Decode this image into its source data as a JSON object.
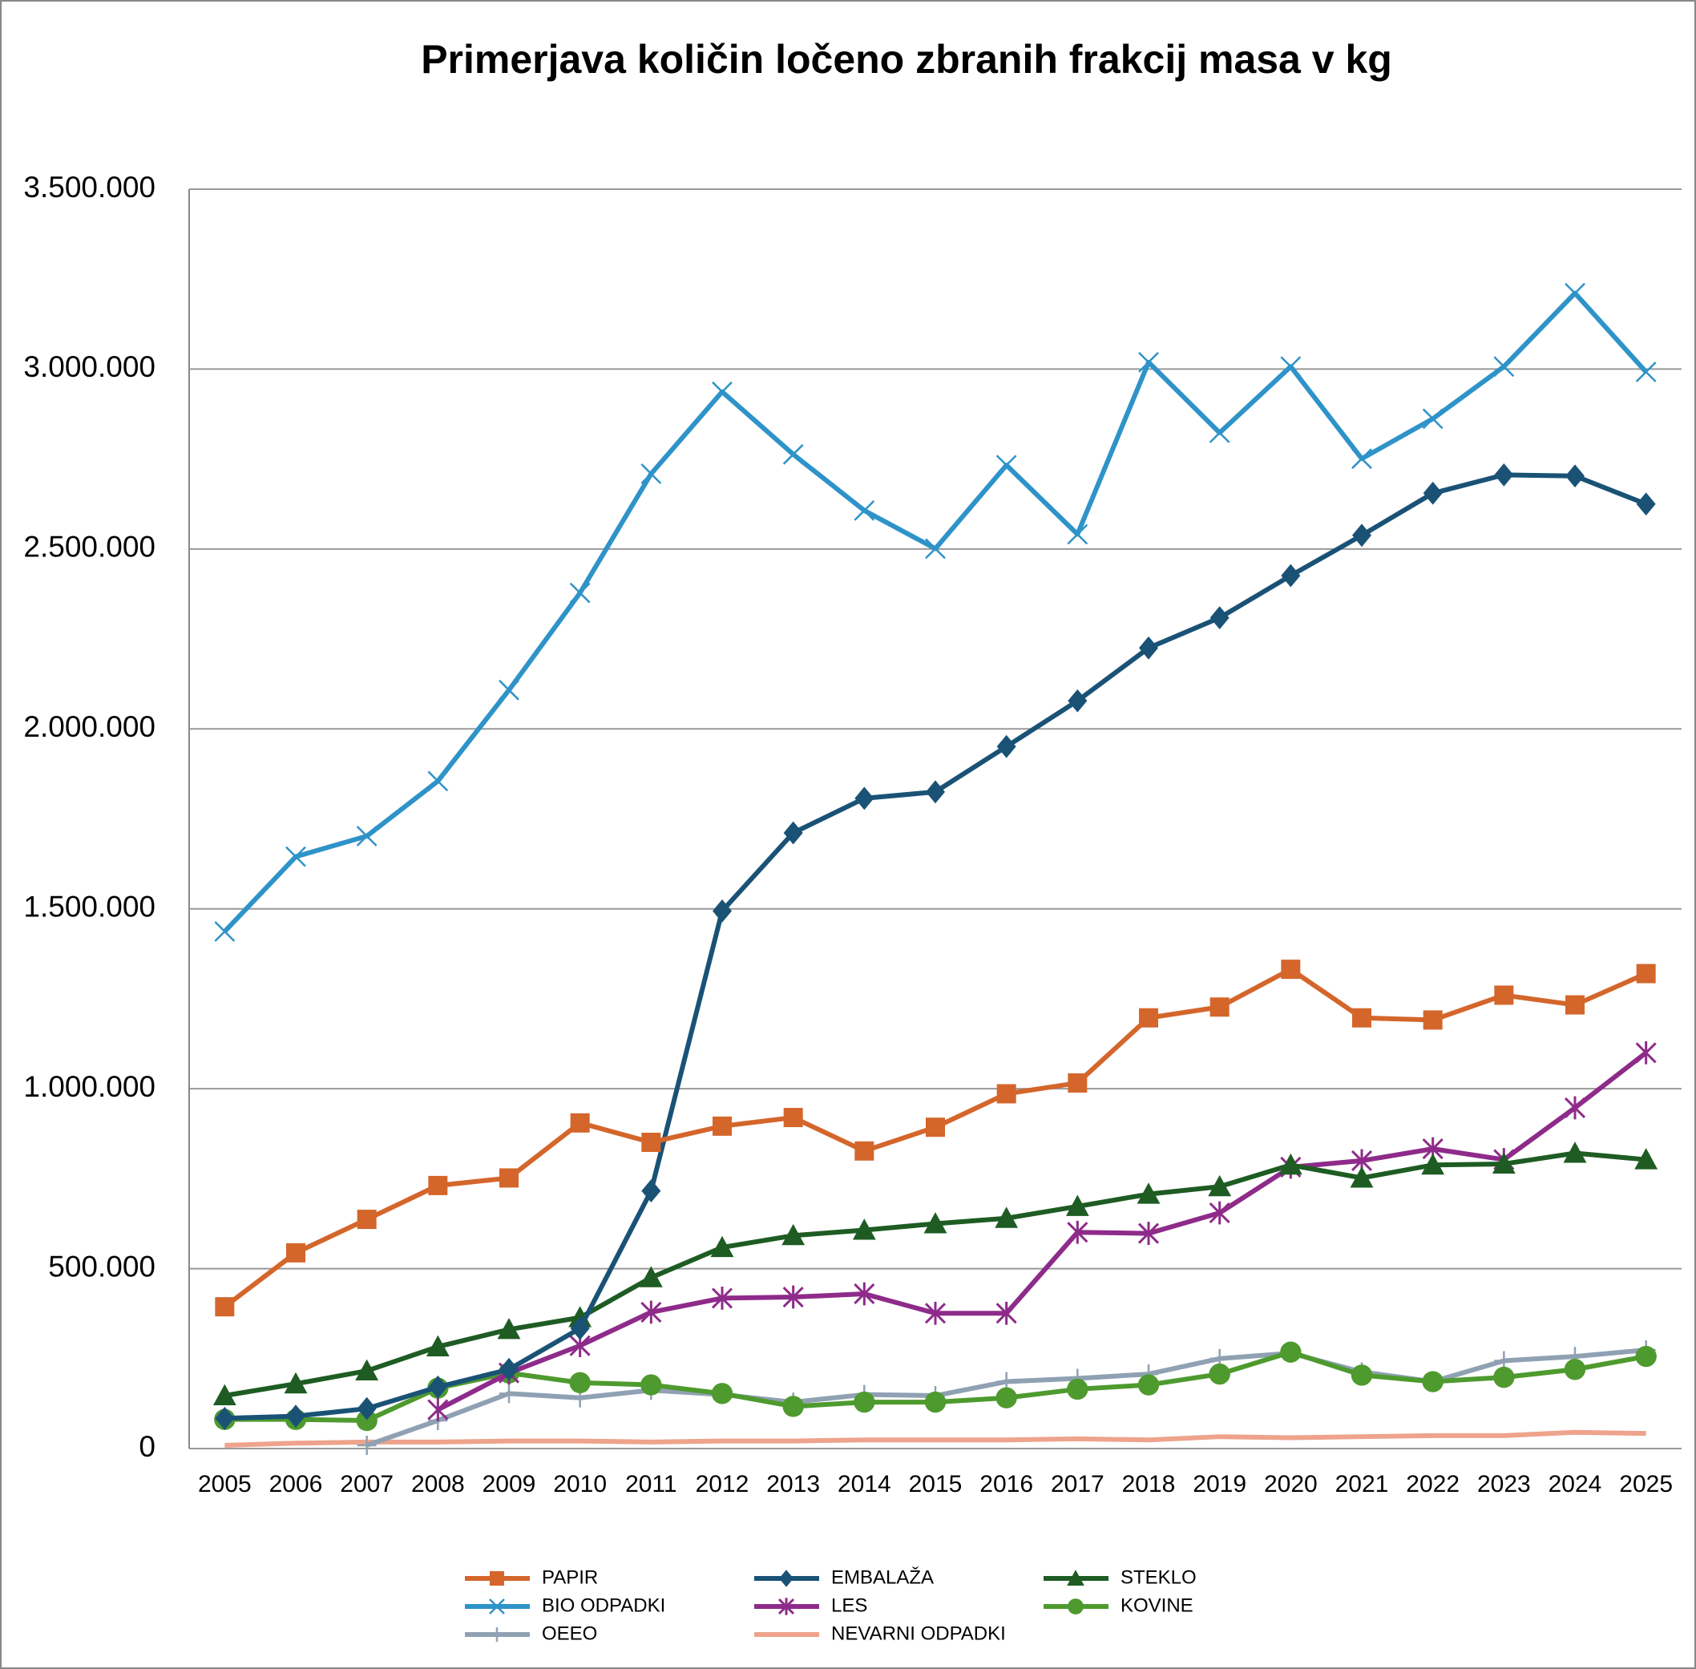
{
  "chart_data": {
    "type": "line",
    "title": "Primerjava količin ločeno zbranih frakcij masa v kg",
    "categories": [
      "2005",
      "2006",
      "2007",
      "2008",
      "2009",
      "2010",
      "2011",
      "2012",
      "2013",
      "2014",
      "2015",
      "2016",
      "2017",
      "2018",
      "2019",
      "2020",
      "2021",
      "2022",
      "2023",
      "2024",
      "2025"
    ],
    "ylim": [
      0,
      3500000
    ],
    "yticks": [
      0,
      {
        "value": 500000,
        "label": "500.000"
      },
      {
        "value": 1000000,
        "label": "1.000.000"
      },
      {
        "value": 1500000,
        "label": "1.500.000"
      },
      {
        "value": 2000000,
        "label": "2.000.000"
      },
      {
        "value": 2500000,
        "label": "2.500.000"
      },
      {
        "value": 3000000,
        "label": "3.000.000"
      },
      {
        "value": 3500000,
        "label": "3.500.000"
      }
    ],
    "grid": true,
    "legend": "bottom",
    "series": [
      {
        "name": "PAPIR",
        "color": "#d4662b",
        "marker": "square",
        "values": [
          394000,
          544000,
          637000,
          731000,
          752000,
          905000,
          851000,
          896000,
          920000,
          827000,
          893000,
          986000,
          1016000,
          1197000,
          1227000,
          1332000,
          1197000,
          1191000,
          1260000,
          1233000,
          1320000
        ]
      },
      {
        "name": "EMBALAŽA",
        "color": "#1a5276",
        "marker": "diamond",
        "values": [
          84000,
          90000,
          111000,
          171000,
          220000,
          334000,
          716000,
          1494000,
          1711000,
          1807000,
          1825000,
          1951000,
          2078000,
          2225000,
          2309000,
          2426000,
          2538000,
          2655000,
          2706000,
          2703000,
          2625000
        ]
      },
      {
        "name": "STEKLO",
        "color": "#1e5c23",
        "marker": "triangle",
        "values": [
          147000,
          180000,
          216000,
          283000,
          331000,
          364000,
          475000,
          559000,
          592000,
          607000,
          625000,
          640000,
          673000,
          707000,
          728000,
          788000,
          752000,
          788000,
          791000,
          821000,
          803000
        ]
      },
      {
        "name": "BIO ODPADKI",
        "color": "#2e93c8",
        "marker": "x",
        "values": [
          1437000,
          1645000,
          1702000,
          1855000,
          2108000,
          2378000,
          2709000,
          2937000,
          2763000,
          2607000,
          2501000,
          2733000,
          2541000,
          3019000,
          2823000,
          3007000,
          2751000,
          2862000,
          3007000,
          3211000,
          2992000
        ]
      },
      {
        "name": "LES",
        "color": "#8e2b8a",
        "marker": "asterisk",
        "values": [
          null,
          null,
          null,
          108000,
          210000,
          286000,
          379000,
          418000,
          421000,
          430000,
          376000,
          376000,
          601000,
          598000,
          655000,
          782000,
          800000,
          833000,
          803000,
          947000,
          1100000
        ]
      },
      {
        "name": "KOVINE",
        "color": "#4e9a2e",
        "marker": "circle",
        "values": [
          81000,
          81000,
          78000,
          168000,
          210000,
          183000,
          177000,
          153000,
          117000,
          129000,
          129000,
          141000,
          165000,
          177000,
          207000,
          268000,
          204000,
          186000,
          198000,
          220000,
          256000
        ]
      },
      {
        "name": "OEEO",
        "color": "#8fa1b3",
        "marker": "plus",
        "values": [
          null,
          null,
          9000,
          78000,
          153000,
          141000,
          162000,
          150000,
          129000,
          150000,
          147000,
          186000,
          195000,
          207000,
          250000,
          265000,
          213000,
          186000,
          244000,
          256000,
          274000
        ]
      },
      {
        "name": "NEVARNI ODPADKI",
        "color": "#eea38c",
        "marker": "none",
        "values": [
          9000,
          15000,
          18000,
          18000,
          21000,
          21000,
          18000,
          21000,
          21000,
          24000,
          24000,
          24000,
          27000,
          24000,
          33000,
          30000,
          33000,
          36000,
          36000,
          45000,
          42000
        ]
      }
    ]
  }
}
